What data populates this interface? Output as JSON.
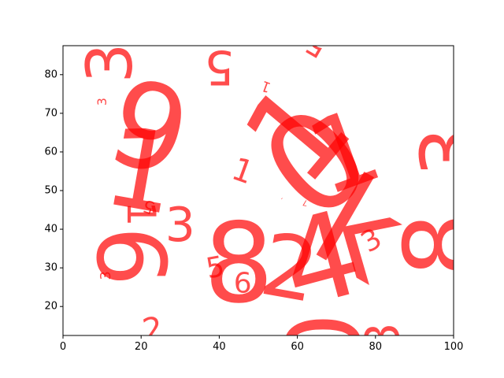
{
  "chart_data": {
    "type": "scatter",
    "title": "",
    "xlabel": "",
    "ylabel": "",
    "xlim": [
      0,
      100
    ],
    "ylim": [
      12.5,
      87.5
    ],
    "grid": false,
    "x_ticks": [
      0,
      20,
      40,
      60,
      80,
      100
    ],
    "y_ticks": [
      20,
      30,
      40,
      50,
      60,
      70,
      80
    ],
    "x_tick_labels": [
      "0",
      "20",
      "40",
      "60",
      "80",
      "100"
    ],
    "y_tick_labels": [
      "20",
      "30",
      "40",
      "50",
      "60",
      "70",
      "80"
    ],
    "marker_color": "#ff0000",
    "marker_alpha": 0.7,
    "points": [
      {
        "x": 12,
        "y": 83,
        "label": "3",
        "size": 80,
        "rotation": 90
      },
      {
        "x": 22,
        "y": 66,
        "label": "9",
        "size": 150,
        "rotation": -15
      },
      {
        "x": 20,
        "y": 55,
        "label": "1",
        "size": 140,
        "rotation": -10
      },
      {
        "x": 10,
        "y": 73,
        "label": "3",
        "size": 16,
        "rotation": 90
      },
      {
        "x": 29,
        "y": 88,
        "label": "1",
        "size": 8,
        "rotation": 70
      },
      {
        "x": 40,
        "y": 82,
        "label": "5",
        "size": 60,
        "rotation": 180
      },
      {
        "x": 52,
        "y": 77,
        "label": "1",
        "size": 18,
        "rotation": 160
      },
      {
        "x": 65,
        "y": 88,
        "label": "5",
        "size": 40,
        "rotation": 150
      },
      {
        "x": 22,
        "y": 46,
        "label": "5",
        "size": 22,
        "rotation": 160
      },
      {
        "x": 20,
        "y": 44,
        "label": "1",
        "size": 50,
        "rotation": -90
      },
      {
        "x": 30,
        "y": 41,
        "label": "3",
        "size": 60,
        "rotation": 0
      },
      {
        "x": 17,
        "y": 33,
        "label": "6",
        "size": 120,
        "rotation": -90
      },
      {
        "x": 11,
        "y": 28,
        "label": "3",
        "size": 18,
        "rotation": 90
      },
      {
        "x": 45,
        "y": 31,
        "label": "8",
        "size": 140,
        "rotation": 0
      },
      {
        "x": 39,
        "y": 30,
        "label": "5",
        "size": 36,
        "rotation": 10
      },
      {
        "x": 46,
        "y": 26,
        "label": "6",
        "size": 36,
        "rotation": 0
      },
      {
        "x": 46,
        "y": 55,
        "label": "1",
        "size": 40,
        "rotation": -20
      },
      {
        "x": 60,
        "y": 65,
        "label": "1",
        "size": 160,
        "rotation": 50
      },
      {
        "x": 65,
        "y": 57,
        "label": "0",
        "size": 170,
        "rotation": 40
      },
      {
        "x": 72,
        "y": 60,
        "label": "1",
        "size": 130,
        "rotation": 20
      },
      {
        "x": 66,
        "y": 32,
        "label": "4",
        "size": 150,
        "rotation": 15
      },
      {
        "x": 58,
        "y": 30,
        "label": "2",
        "size": 110,
        "rotation": -10
      },
      {
        "x": 76,
        "y": 40,
        "label": "k",
        "size": 160,
        "rotation": -30
      },
      {
        "x": 79,
        "y": 37,
        "label": "3",
        "size": 36,
        "rotation": 30
      },
      {
        "x": 99,
        "y": 60,
        "label": "3",
        "size": 100,
        "rotation": 90
      },
      {
        "x": 97,
        "y": 36,
        "label": "8",
        "size": 130,
        "rotation": 90
      },
      {
        "x": 67,
        "y": 10,
        "label": "0",
        "size": 130,
        "rotation": 90
      },
      {
        "x": 82,
        "y": 12,
        "label": "3",
        "size": 60,
        "rotation": 90
      },
      {
        "x": 23,
        "y": 14,
        "label": "2",
        "size": 40,
        "rotation": 10
      },
      {
        "x": 56,
        "y": 48,
        "label": "-",
        "size": 8,
        "rotation": 30
      },
      {
        "x": 62,
        "y": 47,
        "label": "7",
        "size": 10,
        "rotation": 170
      }
    ]
  }
}
